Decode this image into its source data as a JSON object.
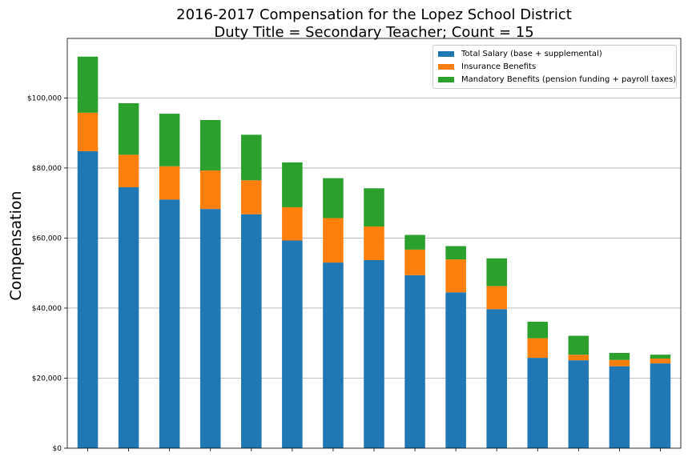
{
  "chart_data": {
    "type": "bar",
    "stacked": true,
    "title": "2016-2017 Compensation for the Lopez School District",
    "subtitle": "Duty Title = Secondary Teacher; Count = 15",
    "xlabel": "",
    "ylabel": "Compensation",
    "ylim": [
      0,
      117000
    ],
    "yticks": [
      0,
      20000,
      40000,
      60000,
      80000,
      100000
    ],
    "ytick_labels": [
      "$0",
      "$20,000",
      "$40,000",
      "$60,000",
      "$80,000",
      "$100,000"
    ],
    "grid": "y",
    "legend_position": "top-right",
    "categories": [
      "",
      "",
      "",
      "",
      "",
      "",
      "",
      "",
      "",
      "",
      "",
      "",
      "",
      "",
      ""
    ],
    "series": [
      {
        "name": "Total Salary (base + supplemental)",
        "color": "#1f77b4",
        "values": [
          84800,
          74500,
          71000,
          68300,
          66800,
          59300,
          53000,
          53700,
          49400,
          44500,
          39700,
          25800,
          25100,
          23400,
          24200
        ]
      },
      {
        "name": "Insurance Benefits",
        "color": "#ff7f0e",
        "values": [
          11000,
          9300,
          9500,
          11000,
          9700,
          9500,
          12700,
          9600,
          7300,
          9400,
          6600,
          5600,
          1600,
          1800,
          1400
        ]
      },
      {
        "name": "Mandatory Benefits (pension funding + payroll taxes)",
        "color": "#2ca02c",
        "values": [
          16000,
          14700,
          15000,
          14400,
          13000,
          12800,
          11400,
          10900,
          4200,
          3800,
          7900,
          4700,
          5400,
          2000,
          1100
        ]
      }
    ]
  }
}
